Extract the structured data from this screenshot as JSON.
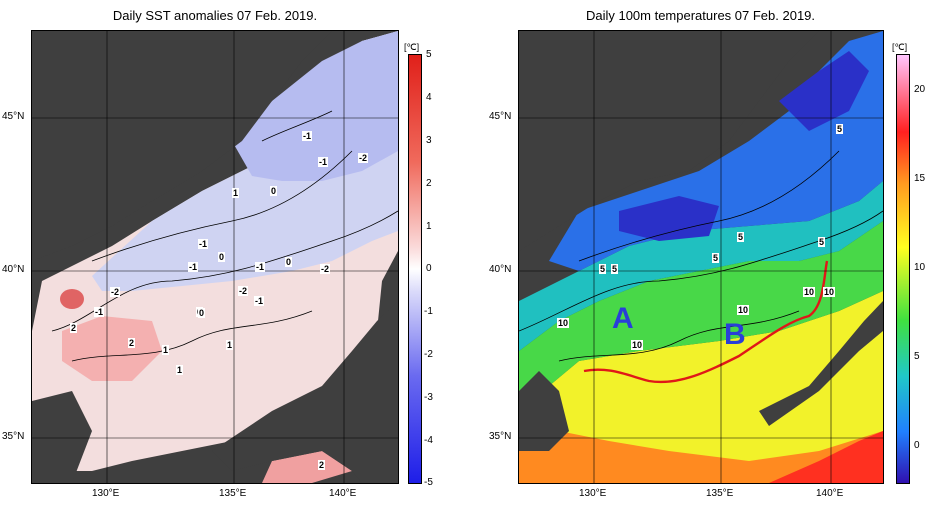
{
  "left_panel": {
    "title": "Daily SST anomalies 07 Feb. 2019.",
    "colorbar_unit": "[℃]",
    "colorbar_ticks": [
      "5",
      "4",
      "3",
      "2",
      "1",
      "0",
      "-1",
      "-2",
      "-3",
      "-4",
      "-5"
    ],
    "contour_labels": [
      "-1",
      "-1",
      "-2",
      "-1",
      "1",
      "0",
      "0",
      "-1",
      "0",
      "-2",
      "-1",
      "0",
      "-2",
      "-1",
      "-2",
      "-1",
      "2",
      "2",
      "0",
      "1",
      "1",
      "1",
      "2"
    ]
  },
  "right_panel": {
    "title": "Daily 100m temperatures 07 Feb. 2019.",
    "colorbar_unit": "[℃]",
    "colorbar_ticks": [
      "20",
      "15",
      "10",
      "5",
      "0"
    ],
    "contour_labels": [
      "5",
      "5",
      "5",
      "5",
      "5",
      "5",
      "10",
      "10",
      "10",
      "10",
      "10"
    ],
    "annotations": [
      "A",
      "B"
    ]
  },
  "axes": {
    "lat_labels": [
      "45°N",
      "40°N",
      "35°N"
    ],
    "lon_labels": [
      "130°E",
      "135°E",
      "140°E"
    ]
  },
  "colors": {
    "land": "#3f3f3f",
    "warm_anomaly": "#f0a0a0",
    "cold_anomaly": "#a0a0f0",
    "front_line": "#e01818",
    "annotation": "#2a3fd8"
  }
}
